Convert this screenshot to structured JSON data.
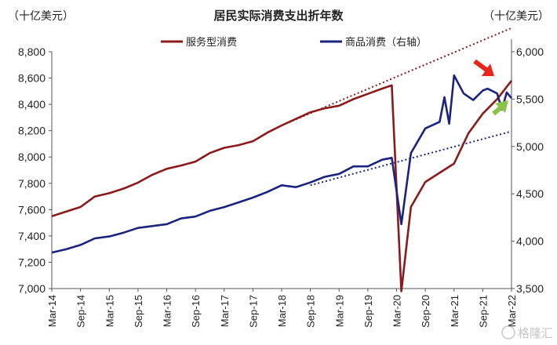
{
  "chart_data": {
    "type": "line",
    "title": "居民实际消费支出折年数",
    "y_left_unit": "（十亿美元）",
    "y_right_unit": "（十亿美元）",
    "y_left_range": [
      7000,
      8800
    ],
    "y_left_ticks": [
      "7,000",
      "7,200",
      "7,400",
      "7,600",
      "7,800",
      "8,000",
      "8,200",
      "8,400",
      "8,600",
      "8,800"
    ],
    "y_right_range": [
      3500,
      6000
    ],
    "y_right_ticks": [
      "3,500",
      "4,000",
      "4,500",
      "5,000",
      "5,500",
      "6,000"
    ],
    "x_ticks": [
      "Mar-14",
      "Sep-14",
      "Mar-15",
      "Sep-15",
      "Mar-16",
      "Sep-16",
      "Mar-17",
      "Sep-17",
      "Mar-18",
      "Sep-18",
      "Mar-19",
      "Sep-19",
      "Mar-20",
      "Sep-20",
      "Mar-21",
      "Sep-21",
      "Mar-22"
    ],
    "legend_position": "top",
    "series": [
      {
        "name": "服务型消费",
        "axis": "left",
        "color": "#8B1A1A",
        "points": [
          [
            "2014-03",
            7550
          ],
          [
            "2014-06",
            7585
          ],
          [
            "2014-09",
            7620
          ],
          [
            "2014-12",
            7700
          ],
          [
            "2015-03",
            7725
          ],
          [
            "2015-06",
            7760
          ],
          [
            "2015-09",
            7805
          ],
          [
            "2015-12",
            7865
          ],
          [
            "2016-03",
            7910
          ],
          [
            "2016-06",
            7935
          ],
          [
            "2016-09",
            7965
          ],
          [
            "2016-12",
            8030
          ],
          [
            "2017-03",
            8070
          ],
          [
            "2017-06",
            8090
          ],
          [
            "2017-09",
            8120
          ],
          [
            "2017-12",
            8185
          ],
          [
            "2018-03",
            8240
          ],
          [
            "2018-06",
            8290
          ],
          [
            "2018-09",
            8340
          ],
          [
            "2018-12",
            8370
          ],
          [
            "2019-03",
            8390
          ],
          [
            "2019-06",
            8440
          ],
          [
            "2019-09",
            8480
          ],
          [
            "2019-12",
            8520
          ],
          [
            "2020-02",
            8545
          ],
          [
            "2020-04",
            6980
          ],
          [
            "2020-06",
            7620
          ],
          [
            "2020-09",
            7810
          ],
          [
            "2020-12",
            7880
          ],
          [
            "2021-03",
            7950
          ],
          [
            "2021-06",
            8180
          ],
          [
            "2021-09",
            8330
          ],
          [
            "2021-12",
            8440
          ],
          [
            "2022-03",
            8580
          ]
        ]
      },
      {
        "name": "商品消费（右轴）",
        "axis": "right",
        "color": "#1A237E",
        "points": [
          [
            "2014-03",
            3880
          ],
          [
            "2014-06",
            3915
          ],
          [
            "2014-09",
            3960
          ],
          [
            "2014-12",
            4030
          ],
          [
            "2015-03",
            4050
          ],
          [
            "2015-06",
            4090
          ],
          [
            "2015-09",
            4140
          ],
          [
            "2015-12",
            4160
          ],
          [
            "2016-03",
            4180
          ],
          [
            "2016-06",
            4240
          ],
          [
            "2016-09",
            4260
          ],
          [
            "2016-12",
            4320
          ],
          [
            "2017-03",
            4360
          ],
          [
            "2017-06",
            4410
          ],
          [
            "2017-09",
            4460
          ],
          [
            "2017-12",
            4520
          ],
          [
            "2018-03",
            4590
          ],
          [
            "2018-06",
            4570
          ],
          [
            "2018-09",
            4620
          ],
          [
            "2018-12",
            4680
          ],
          [
            "2019-03",
            4710
          ],
          [
            "2019-06",
            4790
          ],
          [
            "2019-09",
            4790
          ],
          [
            "2019-12",
            4860
          ],
          [
            "2020-02",
            4880
          ],
          [
            "2020-04",
            4180
          ],
          [
            "2020-06",
            4930
          ],
          [
            "2020-09",
            5190
          ],
          [
            "2020-12",
            5260
          ],
          [
            "2021-01",
            5520
          ],
          [
            "2021-02",
            5240
          ],
          [
            "2021-03",
            5750
          ],
          [
            "2021-05",
            5560
          ],
          [
            "2021-07",
            5490
          ],
          [
            "2021-09",
            5590
          ],
          [
            "2021-10",
            5610
          ],
          [
            "2021-12",
            5560
          ],
          [
            "2022-01",
            5390
          ],
          [
            "2022-02",
            5570
          ],
          [
            "2022-03",
            5510
          ]
        ]
      }
    ],
    "trend_lines": [
      {
        "axis": "left",
        "color": "#8B1A1A",
        "from": [
          "2018-03",
          8240
        ],
        "to": [
          "2022-03",
          8980
        ]
      },
      {
        "axis": "right",
        "color": "#1A237E",
        "from": [
          "2018-09",
          4590
        ],
        "to": [
          "2022-03",
          5160
        ]
      }
    ],
    "annotations": [
      {
        "type": "arrow",
        "color": "#E8261C",
        "direction": "down-right"
      },
      {
        "type": "arrow",
        "color": "#8BC34A",
        "direction": "up-right"
      }
    ],
    "watermark": "格隆汇"
  }
}
